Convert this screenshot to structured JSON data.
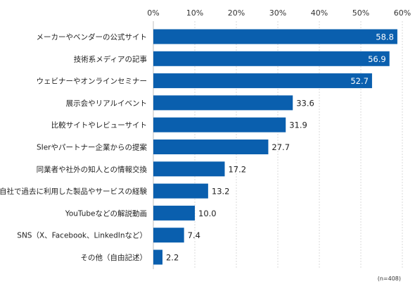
{
  "chart_data": {
    "type": "bar",
    "orientation": "horizontal",
    "categories": [
      "メーカーやベンダーの公式サイト",
      "技術系メディアの記事",
      "ウェビナーやオンラインセミナー",
      "展示会やリアルイベント",
      "比較サイトやレビューサイト",
      "SIerやパートナー企業からの提案",
      "同業者や社外の知人との情報交換",
      "自社で過去に利用した製品やサービスの経験",
      "YouTubeなどの解説動画",
      "SNS（X、Facebook、LinkedInなど）",
      "その他（自由記述）"
    ],
    "values": [
      58.8,
      56.9,
      52.7,
      33.6,
      31.9,
      27.7,
      17.2,
      13.2,
      10.0,
      7.4,
      2.2
    ],
    "value_labels": [
      "58.8",
      "56.9",
      "52.7",
      "33.6",
      "31.9",
      "27.7",
      "17.2",
      "13.2",
      "10.0",
      "7.4",
      "2.2"
    ],
    "xlim": [
      0,
      60
    ],
    "ticks": [
      0,
      10,
      20,
      30,
      40,
      50,
      60
    ],
    "tick_labels": [
      "0%",
      "10%",
      "20%",
      "30%",
      "40%",
      "50%",
      "60%"
    ],
    "axis_position": "top",
    "grid": true,
    "bar_color": "#0a5fae",
    "inside_label_color": "#ffffff",
    "outside_label_color": "#222222",
    "note": "(n=408)"
  }
}
